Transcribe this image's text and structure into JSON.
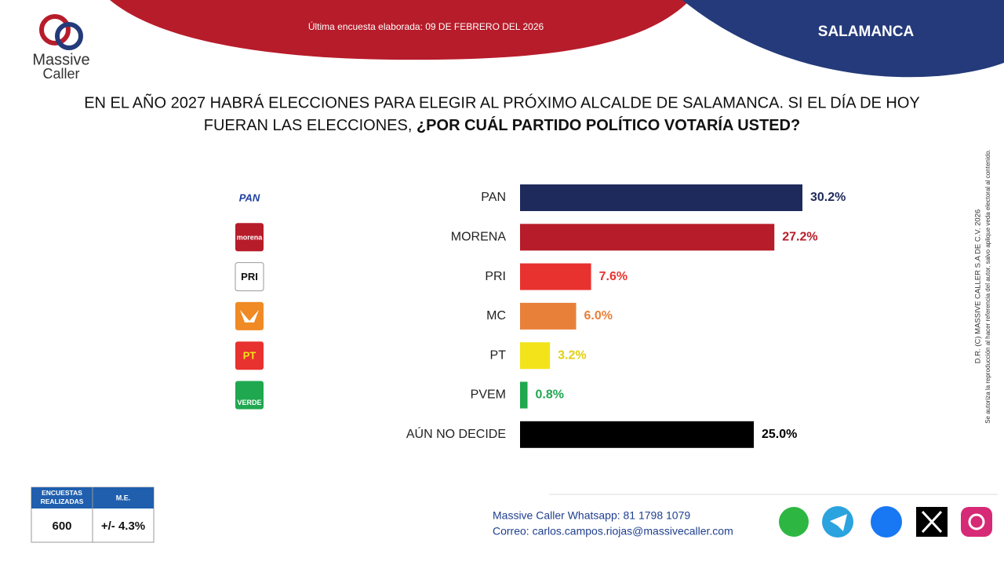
{
  "header": {
    "date": "Última encuesta elaborada: 09 DE FEBRERO DEL 2026",
    "city": "SALAMANCA"
  },
  "logo": {
    "line1": "Massive",
    "line2": "Caller"
  },
  "chart_data": {
    "type": "bar",
    "orientation": "horizontal",
    "title_line1": "EN EL AÑO 2027 HABRÁ ELECCIONES PARA ELEGIR AL PRÓXIMO ALCALDE DE SALAMANCA. SI EL DÍA DE HOY",
    "title_line2": "FUERAN LAS ELECCIONES, ",
    "title_bold": "¿POR CUÁL PARTIDO POLÍTICO VOTARÍA USTED?",
    "categories": [
      "PAN",
      "MORENA",
      "PRI",
      "MC",
      "PT",
      "PVEM",
      "AÚN NO DECIDE"
    ],
    "values": [
      30.2,
      27.2,
      7.6,
      6.0,
      3.2,
      0.8,
      25.0
    ],
    "value_labels": [
      "30.2%",
      "27.2%",
      "7.6%",
      "6.0%",
      "3.2%",
      "0.8%",
      "25.0%"
    ],
    "colors": [
      "#1f2a5c",
      "#b71c2a",
      "#e8322f",
      "#e8803a",
      "#f2e31a",
      "#1fa850",
      "#000000"
    ]
  },
  "party_logos": [
    "PAN",
    "morena",
    "PRI",
    "PT",
    "VERDE"
  ],
  "sample_table": {
    "headers": [
      "ENCUESTAS REALIZADAS",
      "M.E."
    ],
    "values": [
      "600",
      "+/- 4.3%"
    ]
  },
  "side_note": {
    "line1": "D.R. (C) MASSIVE CALLER S.A DE C.V. 2026",
    "line2": "Se autoriza la reproducción al hacer referencia del autor, salvo aplique veda electoral al contenido."
  },
  "footer": {
    "whatsapp": "Massive Caller Whatsapp: 81 1798 1079",
    "email": "Correo: carlos.campos.riojas@massivecaller.com"
  }
}
